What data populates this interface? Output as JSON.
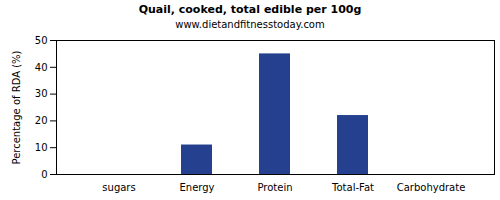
{
  "chart_data": {
    "type": "bar",
    "title": "Quail, cooked, total edible per 100g",
    "subtitle": "www.dietandfitnesstoday.com",
    "y_label": "Percentage of RDA (%)",
    "categories": [
      "sugars",
      "Energy",
      "Protein",
      "Total-Fat",
      "Carbohydrate"
    ],
    "values": [
      0,
      11,
      45,
      22,
      0
    ],
    "color": "#24408e",
    "ylim": [
      0,
      50
    ],
    "yticks": [
      0,
      10,
      20,
      30,
      40,
      50
    ],
    "grid": false
  }
}
